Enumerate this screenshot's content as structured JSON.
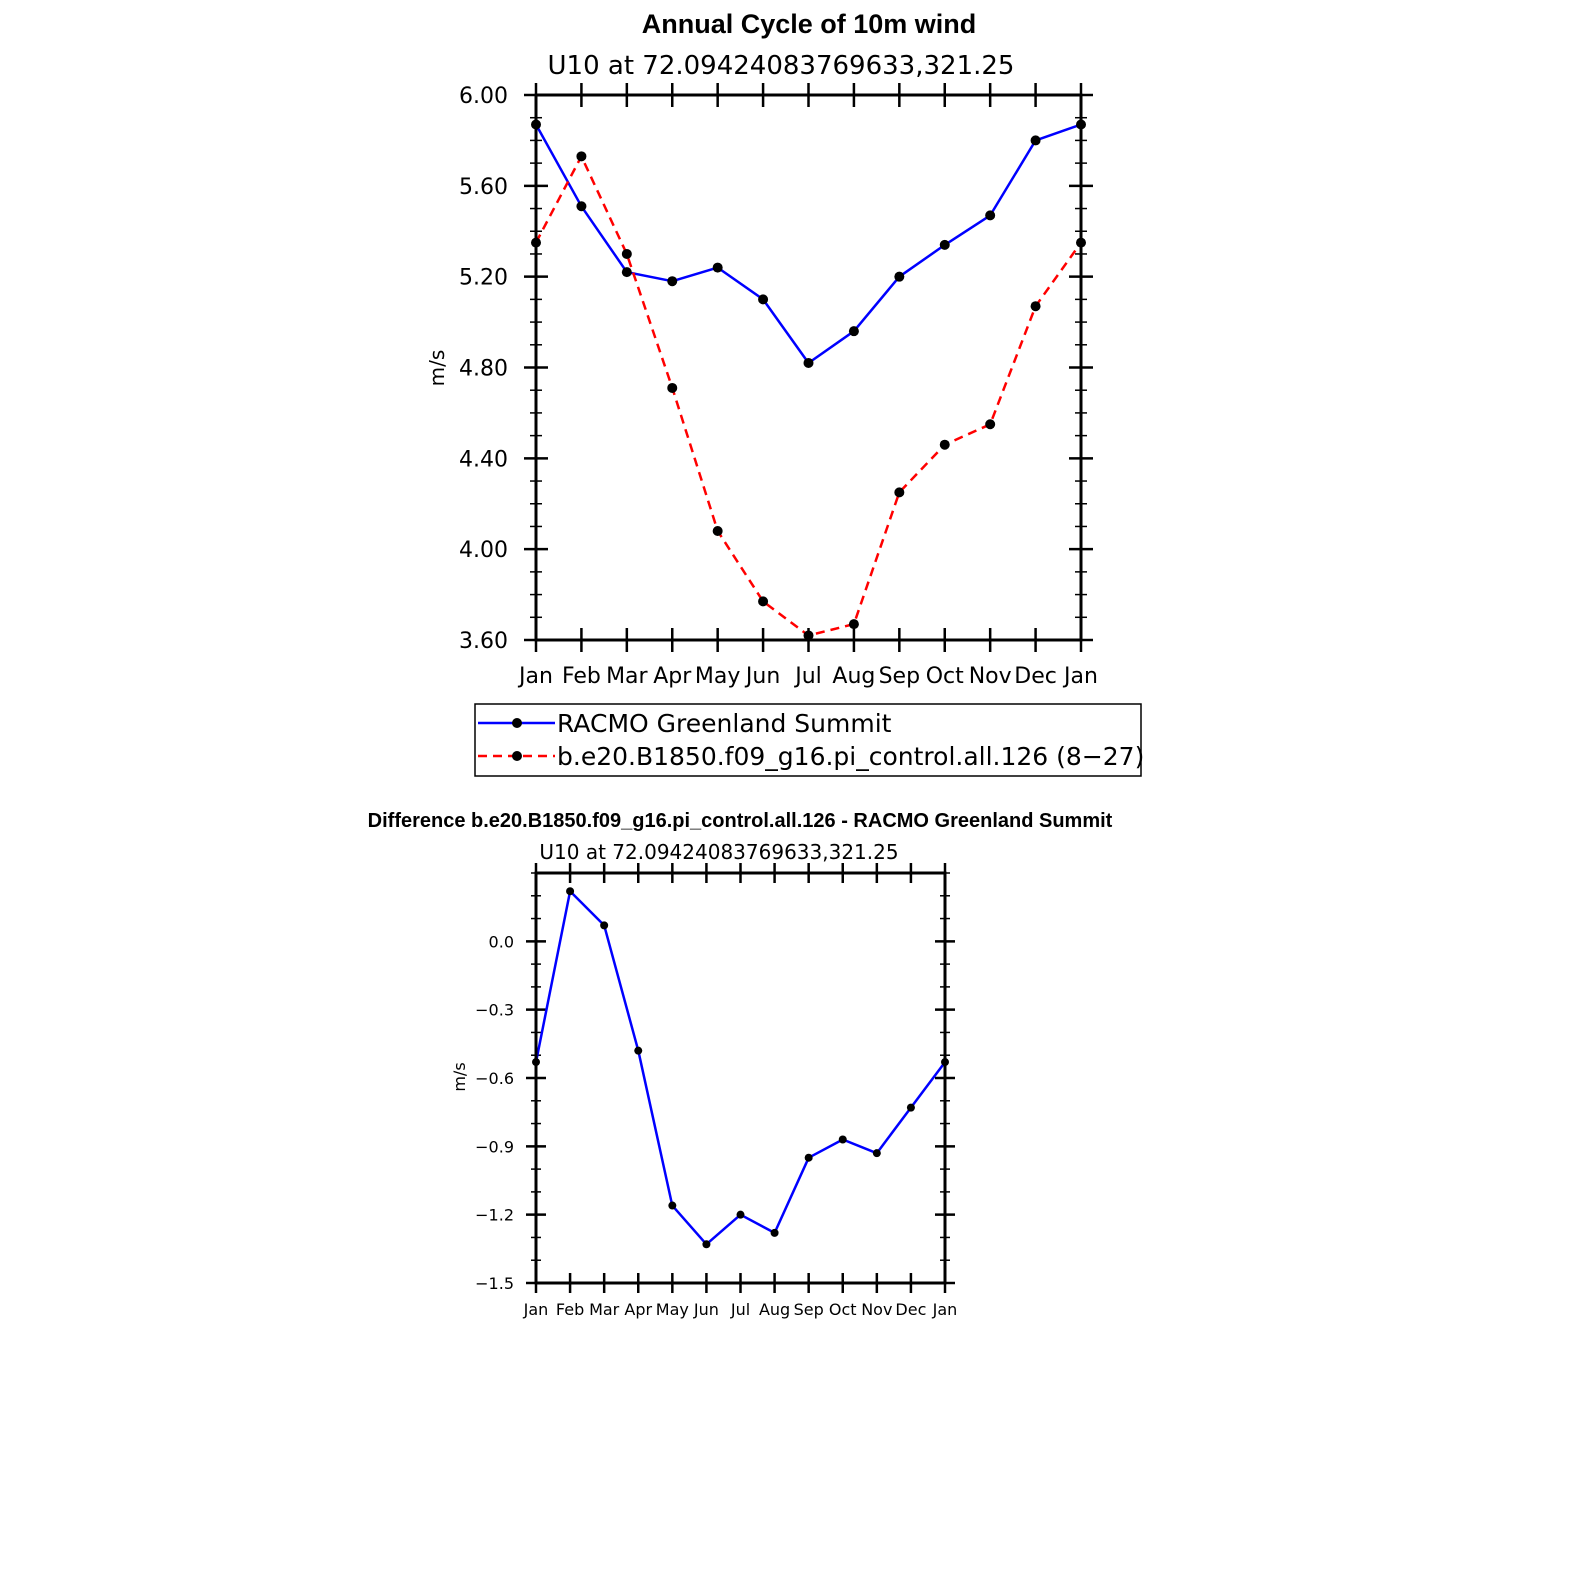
{
  "chart_data": [
    {
      "type": "line",
      "title": "Annual Cycle of 10m wind",
      "subtitle": "U10 at 72.09424083769633,321.25",
      "xlabel": "",
      "ylabel": "m/s",
      "categories": [
        "Jan",
        "Feb",
        "Mar",
        "Apr",
        "May",
        "Jun",
        "Jul",
        "Aug",
        "Sep",
        "Oct",
        "Nov",
        "Dec",
        "Jan"
      ],
      "ylim": [
        3.6,
        6.0
      ],
      "yticks": [
        "3.60",
        "4.00",
        "4.40",
        "4.80",
        "5.20",
        "5.60",
        "6.00"
      ],
      "series": [
        {
          "name": "RACMO Greenland Summit",
          "color": "#0000ff",
          "dash": "solid",
          "values": [
            5.87,
            5.51,
            5.22,
            5.18,
            5.24,
            5.1,
            4.82,
            4.96,
            5.2,
            5.34,
            5.47,
            5.8,
            5.87
          ]
        },
        {
          "name": "b.e20.B1850.f09_g16.pi_control.all.126 (8−27)",
          "color": "#ff0000",
          "dash": "dashed",
          "values": [
            5.35,
            5.73,
            5.3,
            4.71,
            4.08,
            3.77,
            3.62,
            3.67,
            4.25,
            4.46,
            4.55,
            5.07,
            5.35
          ]
        }
      ],
      "legend": "below"
    },
    {
      "type": "line",
      "title": "Difference b.e20.B1850.f09_g16.pi_control.all.126 - RACMO Greenland Summit",
      "subtitle": "U10 at 72.09424083769633,321.25",
      "xlabel": "",
      "ylabel": "m/s",
      "categories": [
        "Jan",
        "Feb",
        "Mar",
        "Apr",
        "May",
        "Jun",
        "Jul",
        "Aug",
        "Sep",
        "Oct",
        "Nov",
        "Dec",
        "Jan"
      ],
      "ylim": [
        -1.5,
        0.3
      ],
      "yticks": [
        "−1.5",
        "−1.2",
        "−0.9",
        "−0.6",
        "−0.3",
        "0.0"
      ],
      "series": [
        {
          "name": "Difference",
          "color": "#0000ff",
          "dash": "solid",
          "values": [
            -0.53,
            0.22,
            0.07,
            -0.48,
            -1.16,
            -1.33,
            -1.2,
            -1.28,
            -0.95,
            -0.87,
            -0.93,
            -0.73,
            -0.53
          ]
        }
      ]
    }
  ]
}
